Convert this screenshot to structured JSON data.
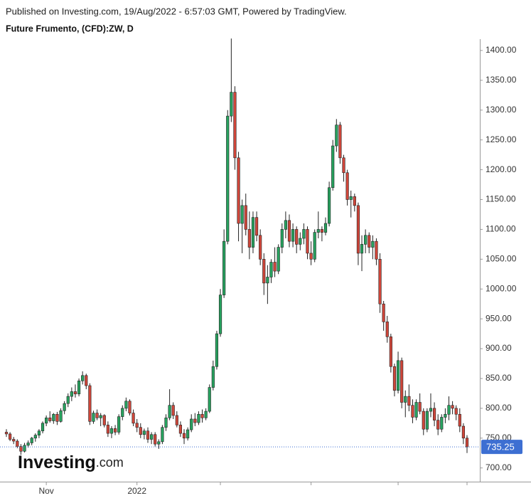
{
  "chart_data": {
    "type": "candlestick",
    "source": "Published on Investing.com, 19/Aug/2022 - 6:57:03 GMT, Powered by TradingView.",
    "title": "Future Frumento, (CFD):ZW, D",
    "watermark": "Investing",
    "watermark_suffix": ".com",
    "up_color": "#27a35f",
    "down_color": "#d0463a",
    "last_price_color": "#3d6fd2",
    "ylim": [
      677,
      1419
    ],
    "yticks": [
      {
        "value": 700,
        "label": "700.00"
      },
      {
        "value": 750,
        "label": "750.00"
      },
      {
        "value": 800,
        "label": "800.00"
      },
      {
        "value": 850,
        "label": "850.00"
      },
      {
        "value": 900,
        "label": "900.00"
      },
      {
        "value": 950,
        "label": "950.00"
      },
      {
        "value": 1000,
        "label": "1000.00"
      },
      {
        "value": 1050,
        "label": "1050.00"
      },
      {
        "value": 1100,
        "label": "1100.00"
      },
      {
        "value": 1150,
        "label": "1150.00"
      },
      {
        "value": 1200,
        "label": "1200.00"
      },
      {
        "value": 1250,
        "label": "1250.00"
      },
      {
        "value": 1300,
        "label": "1300.00"
      },
      {
        "value": 1350,
        "label": "1350.00"
      },
      {
        "value": 1400,
        "label": "1400.00"
      }
    ],
    "xticks": [
      {
        "value": 11,
        "label": "Nov"
      },
      {
        "value": 36,
        "label": "2022"
      },
      {
        "value": 59,
        "label": null
      },
      {
        "value": 84,
        "label": null
      },
      {
        "value": 108,
        "label": null
      },
      {
        "value": 127,
        "label": null
      }
    ],
    "open": [
      760,
      757,
      748,
      745,
      736,
      728,
      738,
      742,
      750,
      755,
      762,
      775,
      784,
      779,
      790,
      778,
      796,
      808,
      820,
      828,
      824,
      846,
      855,
      838,
      778,
      792,
      784,
      788,
      772,
      758,
      766,
      760,
      786,
      800,
      812,
      792,
      775,
      768,
      756,
      762,
      748,
      756,
      740,
      744,
      768,
      784,
      805,
      788,
      772,
      758,
      750,
      764,
      782,
      776,
      790,
      784,
      795,
      835,
      870,
      925,
      990,
      1080,
      1290,
      1330,
      1220,
      1110,
      1140,
      1100,
      1070,
      1120,
      1090,
      1050,
      1010,
      1020,
      1045,
      1030,
      1070,
      1100,
      1115,
      1080,
      1100,
      1075,
      1085,
      1100,
      1060,
      1050,
      1095,
      1100,
      1095,
      1110,
      1170,
      1240,
      1275,
      1220,
      1195,
      1150,
      1155,
      1140,
      1060,
      1075,
      1090,
      1070,
      1080,
      1050,
      975,
      945,
      920,
      870,
      830,
      880,
      810,
      820,
      805,
      785,
      810,
      795,
      765,
      795,
      800,
      780,
      765,
      785,
      790,
      805,
      800,
      790,
      770,
      750
    ],
    "high": [
      765,
      760,
      752,
      748,
      740,
      742,
      746,
      752,
      758,
      765,
      778,
      788,
      795,
      792,
      794,
      800,
      812,
      825,
      835,
      840,
      850,
      862,
      858,
      842,
      796,
      798,
      792,
      790,
      778,
      770,
      772,
      790,
      805,
      818,
      815,
      798,
      782,
      775,
      766,
      768,
      760,
      760,
      748,
      772,
      790,
      832,
      810,
      795,
      778,
      765,
      768,
      790,
      792,
      795,
      798,
      800,
      840,
      880,
      930,
      1000,
      1100,
      1300,
      1420,
      1340,
      1230,
      1150,
      1160,
      1130,
      1130,
      1130,
      1100,
      1060,
      1040,
      1050,
      1070,
      1075,
      1110,
      1130,
      1125,
      1110,
      1105,
      1095,
      1110,
      1105,
      1080,
      1100,
      1130,
      1105,
      1120,
      1180,
      1250,
      1285,
      1280,
      1225,
      1200,
      1165,
      1160,
      1145,
      1090,
      1100,
      1095,
      1090,
      1085,
      1060,
      980,
      955,
      925,
      875,
      895,
      885,
      830,
      840,
      815,
      815,
      825,
      800,
      800,
      825,
      810,
      790,
      790,
      800,
      820,
      812,
      805,
      800,
      775,
      755
    ],
    "low": [
      752,
      745,
      740,
      733,
      722,
      726,
      734,
      738,
      744,
      750,
      758,
      770,
      776,
      774,
      772,
      776,
      790,
      802,
      812,
      818,
      820,
      840,
      832,
      772,
      774,
      780,
      770,
      768,
      752,
      750,
      755,
      756,
      780,
      795,
      788,
      770,
      760,
      750,
      748,
      742,
      740,
      736,
      732,
      740,
      762,
      780,
      782,
      768,
      752,
      740,
      746,
      760,
      770,
      772,
      776,
      780,
      792,
      830,
      865,
      920,
      985,
      1075,
      1280,
      1200,
      1080,
      1060,
      1090,
      1050,
      1060,
      1080,
      1040,
      990,
      975,
      1010,
      1020,
      1025,
      1060,
      1085,
      1070,
      1070,
      1060,
      1065,
      1075,
      1050,
      1040,
      1045,
      1085,
      1080,
      1090,
      1105,
      1165,
      1230,
      1210,
      1180,
      1140,
      1120,
      1130,
      1040,
      1030,
      1060,
      1060,
      1050,
      1040,
      960,
      930,
      910,
      860,
      820,
      825,
      800,
      785,
      795,
      775,
      780,
      790,
      755,
      760,
      785,
      770,
      755,
      760,
      775,
      780,
      790,
      780,
      760,
      740,
      725
    ],
    "close": [
      757,
      748,
      745,
      736,
      728,
      738,
      742,
      750,
      755,
      762,
      775,
      784,
      779,
      790,
      778,
      796,
      808,
      820,
      828,
      824,
      846,
      855,
      838,
      778,
      792,
      784,
      788,
      772,
      758,
      766,
      760,
      786,
      800,
      812,
      792,
      775,
      768,
      756,
      762,
      748,
      756,
      740,
      744,
      768,
      784,
      805,
      788,
      772,
      758,
      750,
      764,
      782,
      776,
      790,
      784,
      795,
      835,
      870,
      925,
      990,
      1080,
      1290,
      1330,
      1220,
      1110,
      1140,
      1100,
      1070,
      1120,
      1090,
      1050,
      1010,
      1020,
      1045,
      1030,
      1070,
      1100,
      1115,
      1080,
      1100,
      1075,
      1085,
      1100,
      1060,
      1050,
      1095,
      1100,
      1095,
      1110,
      1170,
      1240,
      1275,
      1220,
      1195,
      1150,
      1155,
      1140,
      1060,
      1075,
      1090,
      1070,
      1080,
      1050,
      975,
      945,
      920,
      870,
      830,
      880,
      810,
      820,
      805,
      785,
      810,
      795,
      765,
      795,
      800,
      780,
      765,
      785,
      790,
      805,
      800,
      790,
      770,
      750,
      735.25
    ]
  }
}
